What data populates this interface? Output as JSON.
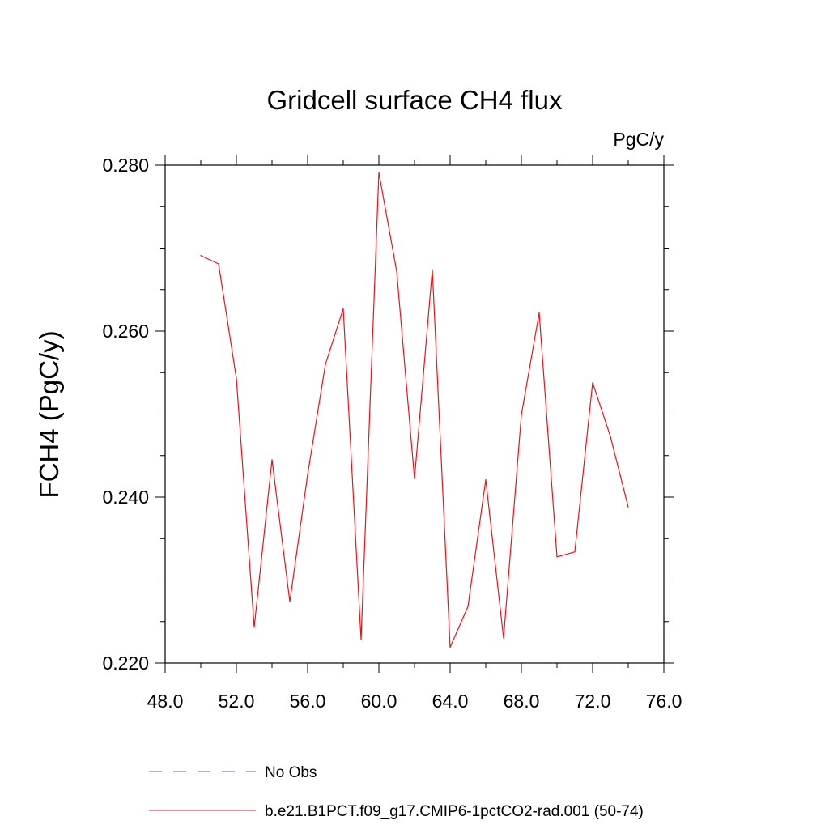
{
  "chart_data": {
    "type": "line",
    "title": "Gridcell surface CH4 flux",
    "units": "PgC/y",
    "ylabel": "FCH4  (PgC/y)",
    "xlabel": "",
    "xlim": [
      48.0,
      76.0
    ],
    "ylim": [
      0.22,
      0.28
    ],
    "x_ticks": [
      "48.0",
      "52.0",
      "56.0",
      "60.0",
      "64.0",
      "68.0",
      "72.0",
      "76.0"
    ],
    "y_ticks": [
      "0.220",
      "0.240",
      "0.260",
      "0.280"
    ],
    "grid": false,
    "legend_position": "bottom",
    "series": [
      {
        "name": "b.e21.B1PCT.f09_g17.CMIP6-1pctCO2-rad.001 (50-74)",
        "color": "#e8141b",
        "style": "solid",
        "x": [
          50,
          51,
          52,
          53,
          54,
          55,
          56,
          57,
          58,
          59,
          60,
          61,
          62,
          63,
          64,
          65,
          66,
          67,
          68,
          69,
          70,
          71,
          72,
          73,
          74
        ],
        "values": [
          0.2691,
          0.2681,
          0.2543,
          0.2243,
          0.2445,
          0.2274,
          0.2427,
          0.256,
          0.2627,
          0.2228,
          0.2791,
          0.2672,
          0.2422,
          0.2674,
          0.2219,
          0.2268,
          0.2421,
          0.223,
          0.2499,
          0.2622,
          0.2328,
          0.2334,
          0.2538,
          0.2473,
          0.2388
        ]
      }
    ],
    "legend": [
      {
        "label": "No Obs",
        "color": "#6a5acd",
        "style": "dashed"
      },
      {
        "label": "b.e21.B1PCT.f09_g17.CMIP6-1pctCO2-rad.001 (50-74)",
        "color": "#e8141b",
        "style": "solid"
      }
    ]
  }
}
